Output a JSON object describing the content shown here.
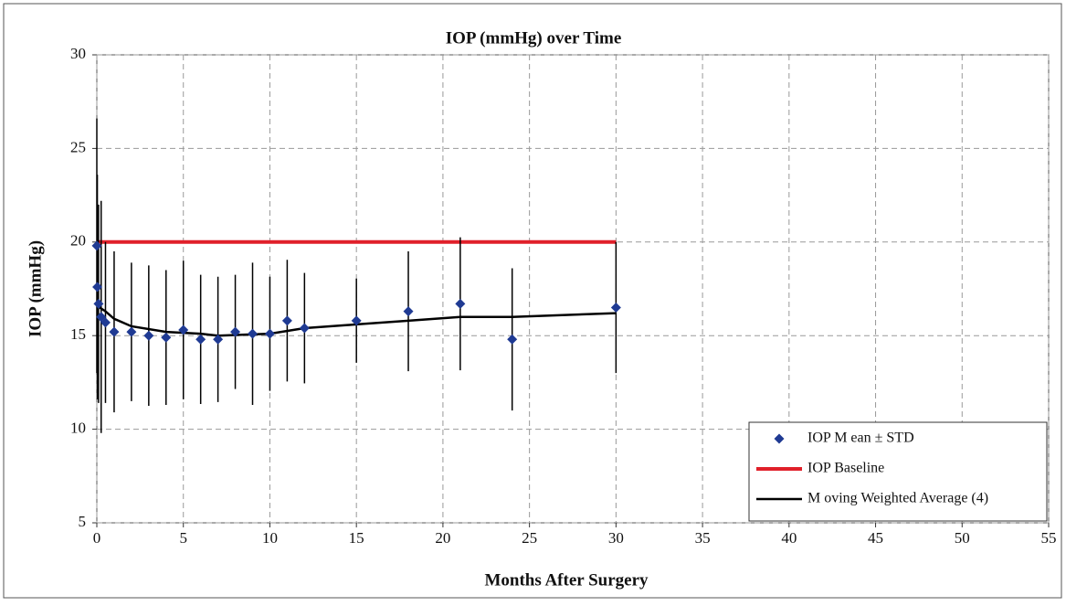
{
  "chart_data": {
    "type": "scatter",
    "title": "IOP (mmHg) over Time",
    "x_label": "Months After Surgery",
    "y_label": "IOP (mmHg)",
    "xlim": [
      0,
      55
    ],
    "xticks": [
      0,
      5,
      10,
      15,
      20,
      25,
      30,
      35,
      40,
      45,
      50,
      55
    ],
    "ylim": [
      5,
      30
    ],
    "yticks": [
      5,
      10,
      15,
      20,
      25,
      30
    ],
    "grid": true,
    "legend": "lower right",
    "error_color": "#000000",
    "series": [
      {
        "name": "IOP M ean ± STD",
        "kind": "points",
        "color": "#1f3a93",
        "x": [
          0,
          0.03,
          0.1,
          0.25,
          0.5,
          1,
          2,
          3,
          4,
          5,
          6,
          7,
          8,
          9,
          10,
          11,
          12,
          15,
          18,
          21,
          24,
          30
        ],
        "values": [
          19.8,
          17.6,
          16.7,
          16.0,
          15.7,
          15.2,
          15.2,
          15.0,
          14.9,
          15.3,
          14.8,
          14.8,
          15.2,
          15.1,
          15.1,
          15.8,
          15.4,
          15.8,
          16.3,
          16.7,
          14.8,
          16.5
        ],
        "errors": [
          6.8,
          6.0,
          5.3,
          6.2,
          4.3,
          4.3,
          3.7,
          3.75,
          3.6,
          3.7,
          3.45,
          3.35,
          3.05,
          3.8,
          3.05,
          3.25,
          2.95,
          2.25,
          3.2,
          3.55,
          3.8,
          3.5
        ]
      },
      {
        "name": "IOP Baseline",
        "kind": "line",
        "color": "#e0202a",
        "width": 4,
        "x": [
          0,
          30
        ],
        "values": [
          20,
          20
        ]
      },
      {
        "name": "M oving Weighted Average (4)",
        "kind": "line",
        "color": "#000000",
        "width": 2.5,
        "x": [
          0,
          0.5,
          1,
          2,
          4,
          6,
          7,
          10,
          12,
          15,
          18,
          21,
          24,
          30
        ],
        "values": [
          16.6,
          16.3,
          15.9,
          15.5,
          15.2,
          15.1,
          15.0,
          15.1,
          15.4,
          15.6,
          15.8,
          16.0,
          16.0,
          16.2
        ]
      }
    ]
  }
}
